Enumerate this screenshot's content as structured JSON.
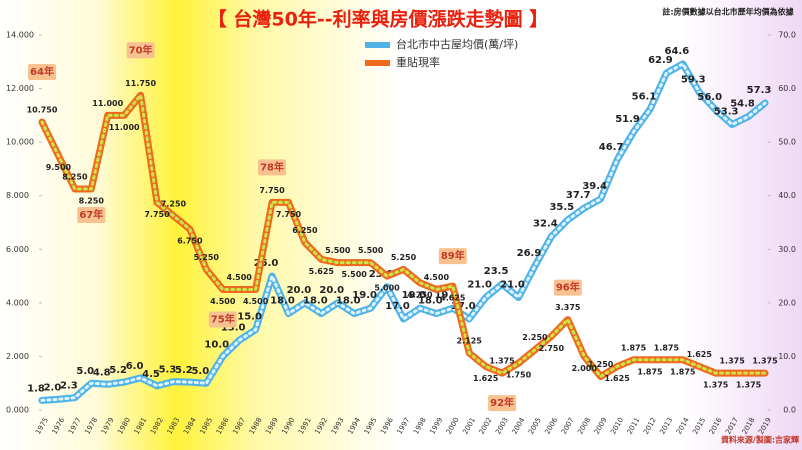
{
  "chart_data": {
    "type": "line",
    "title": "【 台灣50年--利率與房價漲跌走勢圖 】",
    "note": "註:房價數據以台北市歷年均價為依據",
    "source": "資料來源/製圖:吉家輝",
    "categories": [
      "1975",
      "1976",
      "1977",
      "1978",
      "1979",
      "1980",
      "1981",
      "1982",
      "1983",
      "1984",
      "1985",
      "1986",
      "1987",
      "1988",
      "1989",
      "1990",
      "1991",
      "1992",
      "1993",
      "1994",
      "1995",
      "1996",
      "1997",
      "1998",
      "1999",
      "2000",
      "2001",
      "2002",
      "2003",
      "2004",
      "2005",
      "2006",
      "2007",
      "2008",
      "2009",
      "2010",
      "2011",
      "2012",
      "2013",
      "2014",
      "2015",
      "2016",
      "2017",
      "2018",
      "2019"
    ],
    "ylim": [
      0,
      14
    ],
    "yticks": [
      {
        "value": 0,
        "label": "0.000"
      },
      {
        "value": 2,
        "label": "2.000"
      },
      {
        "value": 4,
        "label": "4.000"
      },
      {
        "value": 6,
        "label": "6.000"
      },
      {
        "value": 8,
        "label": "8.000"
      },
      {
        "value": 10,
        "label": "10.000"
      },
      {
        "value": 12,
        "label": "12.000"
      },
      {
        "value": 14,
        "label": "14.000"
      }
    ],
    "y2lim": [
      0,
      70
    ],
    "y2ticks": [
      {
        "value": 0,
        "label": "0.0"
      },
      {
        "value": 10,
        "label": "10.0"
      },
      {
        "value": 20,
        "label": "20.0"
      },
      {
        "value": 30,
        "label": "30.0"
      },
      {
        "value": 40,
        "label": "40.0"
      },
      {
        "value": 50,
        "label": "50.0"
      },
      {
        "value": 60,
        "label": "60.0"
      },
      {
        "value": 70,
        "label": "70.0"
      }
    ],
    "legend": "top",
    "series": [
      {
        "name": "台北市中古屋均價(萬/坪)",
        "color": "#4fb3e8",
        "axis": "y2",
        "values": [
          1.8,
          2.0,
          2.3,
          5.0,
          4.8,
          5.2,
          6.0,
          4.5,
          5.3,
          5.2,
          5.0,
          10.0,
          13.0,
          15.0,
          25.0,
          18.0,
          20.0,
          18.0,
          20.0,
          18.0,
          19.0,
          23.0,
          17.0,
          19.0,
          18.0,
          19.0,
          17.0,
          21.0,
          23.5,
          21.0,
          26.9,
          32.4,
          35.5,
          37.7,
          39.4,
          46.7,
          51.9,
          56.1,
          62.9,
          64.6,
          59.3,
          56.0,
          53.3,
          54.8,
          57.3
        ],
        "value_labels": [
          "1.8",
          "2.0",
          "2.3",
          "5.0",
          "4.8",
          "5.2",
          "6.0",
          "4.5",
          "5.3",
          "5.2",
          "5.0",
          "10.0",
          "13.0",
          "15.0",
          "25.0",
          "18.0",
          "20.0",
          "18.0",
          "20.0",
          "18.0",
          "19.0",
          "23.0",
          "17.0",
          "19.0",
          "18.0",
          "19.0",
          "17.0",
          "21.0",
          "23.5",
          "21.0",
          "26.9",
          "32.4",
          "35.5",
          "37.7",
          "39.4",
          "46.7",
          "51.9",
          "56.1",
          "62.9",
          "64.6",
          "59.3",
          "56.0",
          "53.3",
          "54.8",
          "57.3"
        ]
      },
      {
        "name": "重貼現率",
        "color": "#f0691e",
        "values": [
          10.75,
          9.5,
          8.25,
          8.25,
          11.0,
          11.0,
          11.75,
          7.75,
          7.25,
          6.75,
          5.25,
          4.5,
          4.5,
          4.5,
          7.75,
          7.75,
          6.25,
          5.625,
          5.5,
          5.5,
          5.5,
          5.0,
          5.25,
          4.75,
          4.5,
          4.625,
          2.125,
          1.625,
          1.375,
          1.75,
          2.25,
          2.75,
          3.375,
          2.0,
          1.25,
          1.625,
          1.875,
          1.875,
          1.875,
          1.875,
          1.625,
          1.375,
          1.375,
          1.375,
          1.375
        ],
        "value_labels": [
          "10.750",
          "9.500",
          "8.250",
          "8.250",
          "11.000",
          "11.000",
          "11.750",
          "7.750",
          "7.250",
          "6.750",
          "5.250",
          "4.500",
          "4.500",
          "4.500",
          "7.750",
          "7.750",
          "6.250",
          "5.625",
          "5.500",
          "5.500",
          "5.500",
          "5.000",
          "5.250",
          "4.750",
          "4.500",
          "4.625",
          "2.125",
          "1.625",
          "1.375",
          "1.750",
          "2.250",
          "2.750",
          "3.375",
          "2.000",
          "1.250",
          "1.625",
          "1.875",
          "1.875",
          "1.875",
          "1.875",
          "1.625",
          "1.375",
          "1.375",
          "1.375",
          "1.375"
        ]
      }
    ],
    "annotations": [
      {
        "text": "64年",
        "category": "1975"
      },
      {
        "text": "67年",
        "category": "1978"
      },
      {
        "text": "70年",
        "category": "1981"
      },
      {
        "text": "75年",
        "category": "1986"
      },
      {
        "text": "78年",
        "category": "1989"
      },
      {
        "text": "89年",
        "category": "2000"
      },
      {
        "text": "92年",
        "category": "2003"
      },
      {
        "text": "96年",
        "category": "2007"
      }
    ]
  }
}
